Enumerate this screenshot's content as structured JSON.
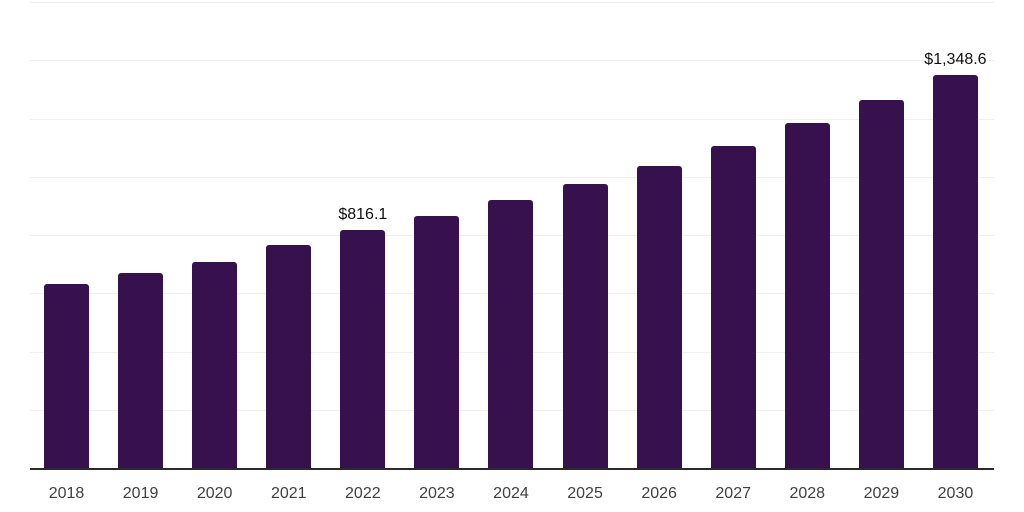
{
  "chart_data": {
    "type": "bar",
    "title": "",
    "xlabel": "",
    "ylabel": "",
    "categories": [
      "2018",
      "2019",
      "2020",
      "2021",
      "2022",
      "2023",
      "2024",
      "2025",
      "2026",
      "2027",
      "2028",
      "2029",
      "2030"
    ],
    "values": [
      633,
      669,
      708,
      766,
      816.1,
      866,
      921,
      976,
      1037,
      1105,
      1184,
      1262,
      1348.6
    ],
    "value_labels": [
      "",
      "",
      "",
      "",
      "$816.1",
      "",
      "",
      "",
      "",
      "",
      "",
      "",
      "$1,348.6"
    ],
    "ylim": [
      0,
      1600
    ],
    "gridline_step": 200,
    "grid": "horizontal-only, no y-axis tick labels",
    "legend": "none",
    "colors": {
      "bar": "#36114D",
      "gridline": "#F0F0F0",
      "axis_line": "#2B2B2B",
      "tick_label": "#3F3F3F",
      "value_label": "#111111",
      "background": "#FFFFFF"
    }
  }
}
